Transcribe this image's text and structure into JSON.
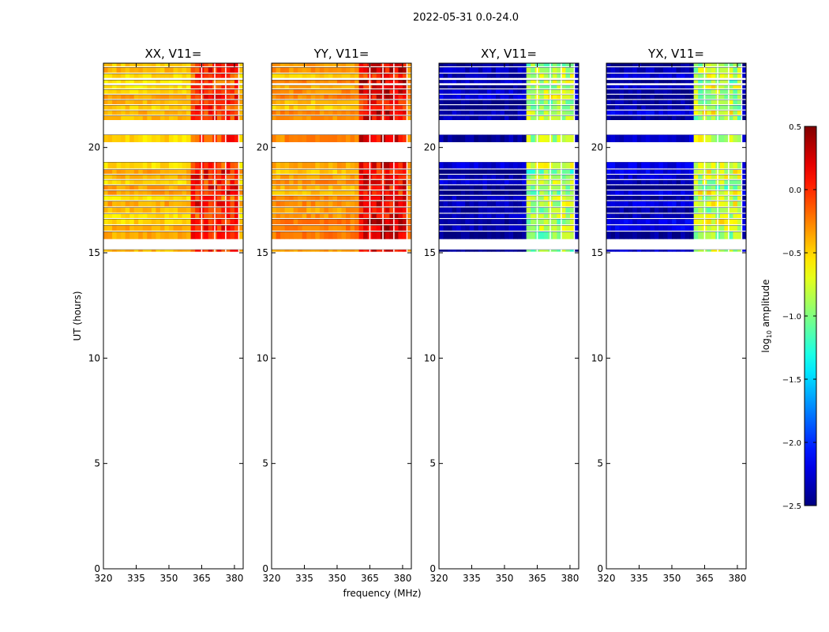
{
  "chart_data": {
    "type": "heatmap",
    "suptitle": "2022-05-31 0.0-24.0",
    "xlabel": "frequency (MHz)",
    "ylabel": "UT (hours)",
    "xlim": [
      320,
      384
    ],
    "ylim": [
      0,
      24
    ],
    "xticks": [
      320,
      335,
      350,
      365,
      380
    ],
    "yticks": [
      0,
      5,
      10,
      15,
      20
    ],
    "colorbar": {
      "label": "log10 amplitude",
      "label_base": "log",
      "label_sub": "10",
      "label_rest": " amplitude",
      "range": [
        -2.5,
        0.5
      ],
      "ticks": [
        0.5,
        0.0,
        -0.5,
        -1.0,
        -1.5,
        -2.0,
        -2.5
      ],
      "tick_labels": [
        "0.5",
        "0.0",
        "−0.5",
        "−1.0",
        "−1.5",
        "−2.0",
        "−2.5"
      ]
    },
    "hot_band_mhz": [
      360,
      382
    ],
    "gap_lines_mhz": [
      365,
      371,
      376,
      382
    ],
    "data_rows_hours": [
      [
        15.05,
        15.15
      ],
      [
        15.65,
        16.0
      ],
      [
        16.05,
        16.3
      ],
      [
        16.35,
        16.6
      ],
      [
        16.65,
        16.85
      ],
      [
        16.9,
        17.15
      ],
      [
        17.2,
        17.45
      ],
      [
        17.5,
        17.7
      ],
      [
        17.75,
        17.95
      ],
      [
        18.0,
        18.2
      ],
      [
        18.25,
        18.45
      ],
      [
        18.5,
        18.7
      ],
      [
        18.75,
        18.95
      ],
      [
        19.0,
        19.3
      ],
      [
        20.25,
        20.6
      ],
      [
        21.3,
        21.5
      ],
      [
        21.55,
        21.75
      ],
      [
        21.8,
        22.0
      ],
      [
        22.05,
        22.25
      ],
      [
        22.3,
        22.5
      ],
      [
        22.55,
        22.75
      ],
      [
        22.8,
        22.95
      ],
      [
        23.05,
        23.2
      ],
      [
        23.3,
        23.5
      ],
      [
        23.55,
        23.8
      ],
      [
        23.85,
        24.0
      ]
    ],
    "panels": [
      {
        "title": "XX, V11=",
        "kind": "auto",
        "base": -0.45,
        "hot": 0.0
      },
      {
        "title": "YY, V11=",
        "kind": "auto",
        "base": -0.35,
        "hot": 0.15
      },
      {
        "title": "XY, V11=",
        "kind": "cross",
        "base": -2.4,
        "hot": -0.9
      },
      {
        "title": "YX, V11=",
        "kind": "cross",
        "base": -2.35,
        "hot": -0.85
      }
    ]
  }
}
